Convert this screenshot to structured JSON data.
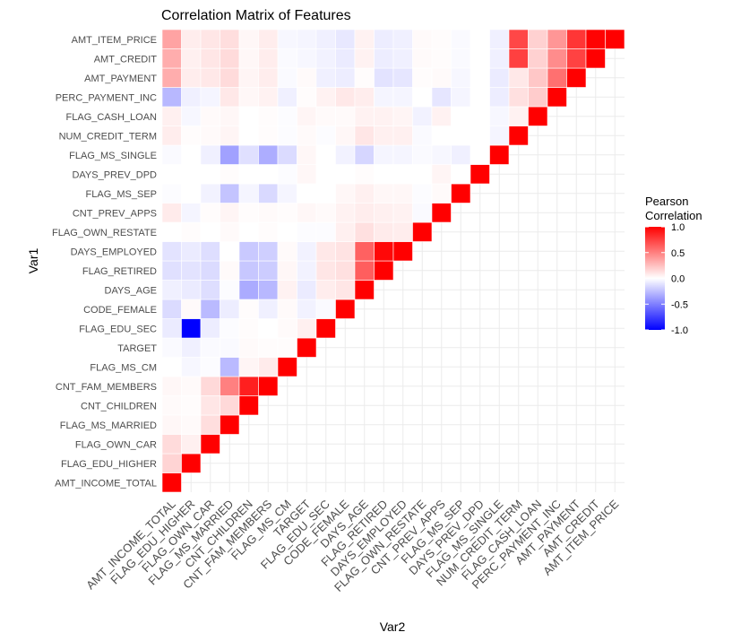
{
  "chart_data": {
    "type": "heatmap",
    "title": "Correlation Matrix of Features",
    "xlabel": "Var2",
    "ylabel": "Var1",
    "variables": [
      "AMT_INCOME_TOTAL",
      "FLAG_EDU_HIGHER",
      "FLAG_OWN_CAR",
      "FLAG_MS_MARRIED",
      "CNT_CHILDREN",
      "CNT_FAM_MEMBERS",
      "FLAG_MS_CM",
      "TARGET",
      "FLAG_EDU_SEC",
      "CODE_FEMALE",
      "DAYS_AGE",
      "FLAG_RETIRED",
      "DAYS_EMPLOYED",
      "FLAG_OWN_RESTATE",
      "CNT_PREV_APPS",
      "FLAG_MS_SEP",
      "DAYS_PREV_DPD",
      "FLAG_MS_SINGLE",
      "NUM_CREDIT_TERM",
      "FLAG_CASH_LOAN",
      "PERC_PAYMENT_INC",
      "AMT_PAYMENT",
      "AMT_CREDIT",
      "AMT_ITEM_PRICE"
    ],
    "matrix": [
      [
        1
      ],
      [
        0.17,
        1
      ],
      [
        0.14,
        0.06,
        1
      ],
      [
        0.03,
        0.02,
        0.13,
        1
      ],
      [
        0.02,
        0.01,
        0.1,
        0.15,
        1
      ],
      [
        0.03,
        0.02,
        0.15,
        0.5,
        0.88,
        1
      ],
      [
        0.0,
        -0.03,
        -0.01,
        -0.27,
        0.04,
        0.08,
        1
      ],
      [
        -0.02,
        -0.06,
        -0.02,
        -0.02,
        0.02,
        0.01,
        0.01,
        1
      ],
      [
        -0.08,
        -1.0,
        -0.07,
        -0.01,
        0.01,
        0.0,
        0.02,
        0.06,
        1
      ],
      [
        -0.14,
        0.02,
        -0.27,
        -0.07,
        0.01,
        -0.06,
        0.02,
        -0.05,
        -0.02,
        1
      ],
      [
        -0.06,
        -0.08,
        -0.13,
        -0.01,
        -0.33,
        -0.28,
        0.05,
        -0.08,
        0.07,
        0.1,
        1
      ],
      [
        -0.12,
        -0.11,
        -0.14,
        0.02,
        -0.22,
        -0.2,
        0.03,
        -0.05,
        0.1,
        0.12,
        0.63,
        1
      ],
      [
        -0.11,
        -0.08,
        -0.13,
        0.0,
        -0.21,
        -0.19,
        0.02,
        -0.05,
        0.09,
        0.11,
        0.62,
        0.97,
        1
      ],
      [
        0.0,
        0.01,
        0.0,
        0.02,
        0.0,
        0.01,
        0.0,
        -0.01,
        -0.01,
        0.06,
        0.12,
        0.08,
        0.07,
        1
      ],
      [
        0.08,
        -0.04,
        0.01,
        0.04,
        0.01,
        0.02,
        0.01,
        0.03,
        0.02,
        0.05,
        0.07,
        0.06,
        0.05,
        -0.02,
        1
      ],
      [
        -0.01,
        0.0,
        -0.05,
        -0.23,
        -0.04,
        -0.15,
        -0.04,
        0.0,
        0.0,
        0.03,
        0.06,
        0.03,
        0.03,
        -0.01,
        0.02,
        1
      ],
      [
        0.0,
        0.0,
        0.0,
        0.01,
        0.0,
        0.0,
        -0.01,
        0.03,
        0.0,
        0.0,
        0.01,
        0.0,
        0.0,
        0.0,
        0.04,
        0.0,
        1
      ],
      [
        -0.02,
        0.0,
        -0.06,
        -0.37,
        -0.12,
        -0.32,
        -0.14,
        0.03,
        0.0,
        -0.05,
        -0.16,
        -0.04,
        -0.04,
        -0.02,
        -0.03,
        -0.06,
        0.0,
        1
      ],
      [
        0.07,
        0.01,
        0.02,
        0.04,
        0.0,
        0.01,
        -0.01,
        0.02,
        -0.01,
        0.03,
        0.1,
        0.06,
        0.06,
        -0.02,
        0.0,
        0.0,
        0.0,
        -0.04,
        1
      ],
      [
        0.06,
        -0.03,
        0.02,
        0.03,
        0.0,
        0.01,
        -0.01,
        0.04,
        0.02,
        0.02,
        0.05,
        0.05,
        0.04,
        -0.05,
        0.05,
        0.0,
        0.0,
        -0.03,
        0.05,
        1
      ],
      [
        -0.28,
        -0.06,
        -0.04,
        0.09,
        0.03,
        0.05,
        -0.06,
        0.01,
        0.05,
        0.09,
        0.07,
        -0.04,
        -0.04,
        0.0,
        -0.1,
        -0.04,
        0.0,
        -0.07,
        0.12,
        0.2,
        1
      ],
      [
        0.32,
        0.07,
        0.09,
        0.14,
        0.04,
        0.07,
        -0.02,
        0.02,
        -0.06,
        -0.07,
        0.01,
        -0.11,
        -0.1,
        0.01,
        0.02,
        -0.03,
        0.0,
        -0.08,
        0.09,
        0.22,
        0.56,
        1
      ],
      [
        0.32,
        0.06,
        0.1,
        0.14,
        0.03,
        0.07,
        -0.02,
        -0.03,
        -0.05,
        -0.08,
        0.05,
        -0.07,
        -0.06,
        0.02,
        0.01,
        -0.02,
        0.0,
        -0.06,
        0.75,
        0.18,
        0.45,
        0.74,
        1
      ],
      [
        0.36,
        0.07,
        0.1,
        0.13,
        0.03,
        0.07,
        -0.03,
        -0.04,
        -0.06,
        -0.09,
        0.05,
        -0.07,
        -0.06,
        0.02,
        0.01,
        -0.02,
        0.0,
        -0.06,
        0.72,
        0.18,
        0.41,
        0.79,
        0.99,
        1
      ]
    ],
    "color_scale": {
      "low": "#0000ff",
      "mid": "#ffffff",
      "high": "#ff0000",
      "limits": [
        -1,
        1
      ]
    },
    "legend": {
      "title_lines": [
        "Pearson",
        "Correlation"
      ],
      "breaks": [
        1.0,
        0.5,
        0.0,
        -0.5,
        -1.0
      ],
      "labels": [
        "1.0",
        "0.5",
        "0.0",
        "-0.5",
        "-1.0"
      ],
      "position": "right"
    },
    "grid": true
  }
}
